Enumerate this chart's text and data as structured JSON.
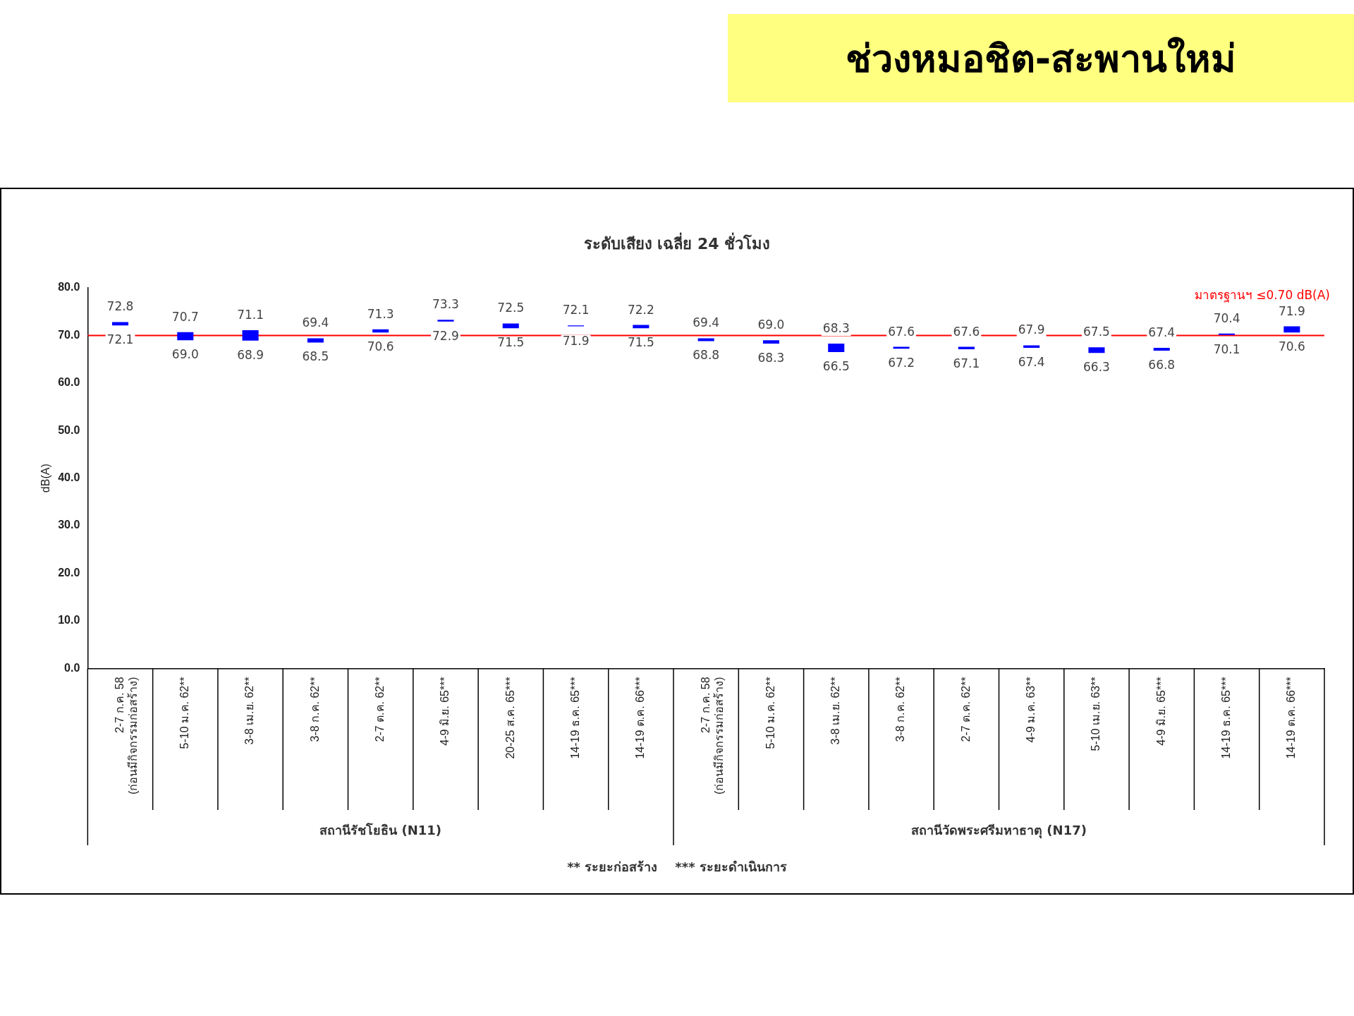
{
  "chart_data": {
    "type": "bar",
    "title": "ช่วงหมอชิต-สะพานใหม่",
    "subtitle": "ระดับเสียง เฉลี่ย 24 ชั่วโมง",
    "ylabel": "dB(A)",
    "categories": [
      "2-7 ก.ค. 58\n(ก่อนมีกิจกรรมก่อสร้าง)",
      "5-10 ม.ค. 62**",
      "3-8 เม.ย. 62**",
      "3-8 ก.ค. 62**",
      "2-7 ต.ค. 62**",
      "4-9 มิ.ย. 65***",
      "20-25 ส.ค. 65***",
      "14-19 ธ.ค. 65***",
      "14-19 ต.ค. 66***",
      "2-7 ก.ค. 58\n(ก่อนมีกิจกรรมก่อสร้าง)",
      "5-10 ม.ค. 62**",
      "3-8 เม.ย. 62**",
      "3-8 ก.ค. 62**",
      "2-7 ต.ค. 62**",
      "4-9 ม.ค. 63**",
      "5-10 เม.ย. 63**",
      "4-9 มิ.ย. 65***",
      "14-19 ธ.ค. 65***",
      "14-19 ต.ค. 66***"
    ],
    "base": [
      72.1,
      69.0,
      68.9,
      68.5,
      70.6,
      72.9,
      71.5,
      71.9,
      71.5,
      68.8,
      68.3,
      66.5,
      67.2,
      67.1,
      67.4,
      66.3,
      66.8,
      70.1,
      70.6
    ],
    "values": [
      0.7,
      1.7,
      2.2,
      0.9,
      0.7,
      0.4,
      1.0,
      0.2,
      0.7,
      0.6,
      0.7,
      1.8,
      0.4,
      0.5,
      0.5,
      1.2,
      0.6,
      0.3,
      1.3
    ],
    "color": "#0000ff",
    "ylim": [
      0,
      80
    ],
    "yticks": [
      {
        "value": 0,
        "label": "0.0"
      },
      {
        "value": 10,
        "label": "10.0"
      },
      {
        "value": 20,
        "label": "20.0"
      },
      {
        "value": 30,
        "label": "30.0"
      },
      {
        "value": 40,
        "label": "40.0"
      },
      {
        "value": 50,
        "label": "50.0"
      },
      {
        "value": 60,
        "label": "60.0"
      },
      {
        "value": 70,
        "label": "70.0"
      },
      {
        "value": 80,
        "label": "80.0"
      }
    ],
    "grid": false,
    "legend": false,
    "ref_lines": [
      {
        "axis": "y",
        "value": 70,
        "label": "มาตรฐานฯ ≤0.70 dB(A)",
        "color": "#ff0000"
      }
    ],
    "annotations": [
      "สถานีรัชโยธิน (N11)",
      "สถานีวัดพระศรีมหาธาตุ (N17)",
      "** ระยะก่อสร้าง    *** ระยะดำเนินการ",
      {
        "text": "72.8",
        "x": "2-7 ก.ค. 58\n(ก่อนมีกิจกรรมก่อสร้าง)",
        "y": 72.8
      },
      {
        "text": "72.1",
        "x": "2-7 ก.ค. 58\n(ก่อนมีกิจกรรมก่อสร้าง)",
        "y": 72.1
      },
      {
        "text": "70.7",
        "x": "5-10 ม.ค. 62**",
        "y": 70.7
      },
      {
        "text": "69.0",
        "x": "5-10 ม.ค. 62**",
        "y": 69.0
      },
      {
        "text": "71.1",
        "x": "3-8 เม.ย. 62**",
        "y": 71.1
      },
      {
        "text": "68.9",
        "x": "3-8 เม.ย. 62**",
        "y": 68.9
      },
      {
        "text": "69.4",
        "x": "3-8 ก.ค. 62**",
        "y": 69.4
      },
      {
        "text": "68.5",
        "x": "3-8 ก.ค. 62**",
        "y": 68.5
      },
      {
        "text": "71.3",
        "x": "2-7 ต.ค. 62**",
        "y": 71.3
      },
      {
        "text": "70.6",
        "x": "2-7 ต.ค. 62**",
        "y": 70.6
      },
      {
        "text": "73.3",
        "x": "4-9 มิ.ย. 65***",
        "y": 73.3
      },
      {
        "text": "72.9",
        "x": "4-9 มิ.ย. 65***",
        "y": 72.9
      },
      {
        "text": "72.5",
        "x": "20-25 ส.ค. 65***",
        "y": 72.5
      },
      {
        "text": "71.5",
        "x": "20-25 ส.ค. 65***",
        "y": 71.5
      },
      {
        "text": "72.1",
        "x": "14-19 ธ.ค. 65***",
        "y": 72.1
      },
      {
        "text": "71.9",
        "x": "14-19 ธ.ค. 65***",
        "y": 71.9
      },
      {
        "text": "72.2",
        "x": "14-19 ต.ค. 66***",
        "y": 72.2
      },
      {
        "text": "71.5",
        "x": "14-19 ต.ค. 66***",
        "y": 71.5
      },
      {
        "text": "69.4",
        "y": 69.4
      },
      {
        "text": "68.8",
        "y": 68.8
      },
      {
        "text": "69.0",
        "y": 69.0
      },
      {
        "text": "68.3",
        "y": 68.3
      },
      {
        "text": "68.3",
        "y": 68.3
      },
      {
        "text": "66.5",
        "y": 66.5
      },
      {
        "text": "67.6",
        "y": 67.6
      },
      {
        "text": "67.2",
        "y": 67.2
      },
      {
        "text": "67.6",
        "y": 67.6
      },
      {
        "text": "67.1",
        "y": 67.1
      },
      {
        "text": "67.9",
        "y": 67.9
      },
      {
        "text": "67.4",
        "y": 67.4
      },
      {
        "text": "67.5",
        "y": 67.5
      },
      {
        "text": "66.3",
        "y": 66.3
      },
      {
        "text": "67.4",
        "y": 67.4
      },
      {
        "text": "66.8",
        "y": 66.8
      },
      {
        "text": "70.4",
        "y": 70.4
      },
      {
        "text": "70.1",
        "y": 70.1
      },
      {
        "text": "71.9",
        "y": 71.9
      },
      {
        "text": "70.6",
        "y": 70.6
      }
    ]
  }
}
